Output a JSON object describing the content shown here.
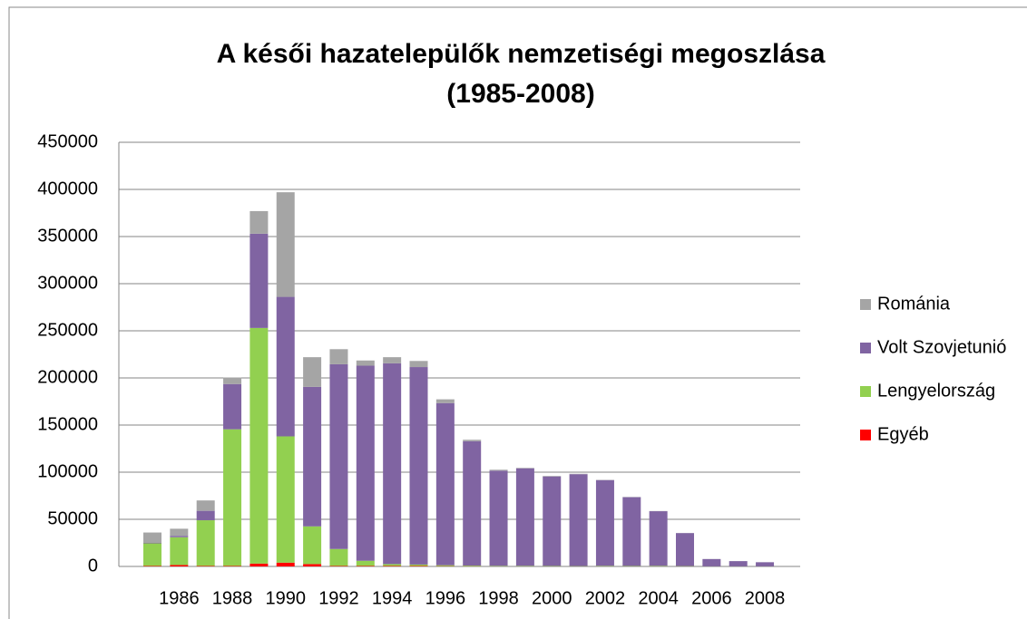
{
  "chart_data": {
    "type": "stacked_bar",
    "title": "A késői hazatelepülők nemzetiségi megoszlása (1985-2008)",
    "categories": [
      null,
      "1986",
      null,
      "1988",
      null,
      "1990",
      null,
      "1992",
      null,
      "1994",
      null,
      "1996",
      null,
      "1998",
      null,
      "2000",
      null,
      "2002",
      null,
      "2004",
      null,
      "2006",
      null,
      "2008"
    ],
    "series": [
      {
        "name": "Egyéb",
        "color": "#ff0000",
        "values": [
          500,
          1500,
          500,
          500,
          3000,
          4000,
          2500,
          500,
          500,
          500,
          500,
          300,
          200,
          100,
          100,
          100,
          100,
          100,
          100,
          100,
          100,
          50,
          50,
          50
        ]
      },
      {
        "name": "Lengyelország",
        "color": "#92d050",
        "values": [
          24000,
          29500,
          48500,
          145000,
          250000,
          134000,
          40000,
          18000,
          5500,
          2000,
          1500,
          1000,
          700,
          500,
          500,
          400,
          300,
          500,
          400,
          500,
          300,
          100,
          100,
          100
        ]
      },
      {
        "name": "Volt Szovjetunió",
        "color": "#8064a2",
        "values": [
          500,
          1500,
          10000,
          48000,
          100000,
          148000,
          148000,
          196000,
          207000,
          213000,
          209500,
          172000,
          132000,
          101000,
          103500,
          95000,
          97500,
          91000,
          73000,
          58000,
          35000,
          7700,
          5500,
          4300
        ]
      },
      {
        "name": "Románia",
        "color": "#a5a5a5",
        "values": [
          11000,
          7500,
          11000,
          7000,
          24000,
          111000,
          31500,
          16000,
          5500,
          6500,
          6500,
          4000,
          1500,
          1000,
          500,
          500,
          400,
          300,
          200,
          200,
          100,
          50,
          50,
          50
        ]
      }
    ],
    "ylim": [
      0,
      450000
    ],
    "yticks": [
      0,
      50000,
      100000,
      150000,
      200000,
      250000,
      300000,
      350000,
      400000,
      450000
    ],
    "grid": true,
    "legend": "right"
  }
}
